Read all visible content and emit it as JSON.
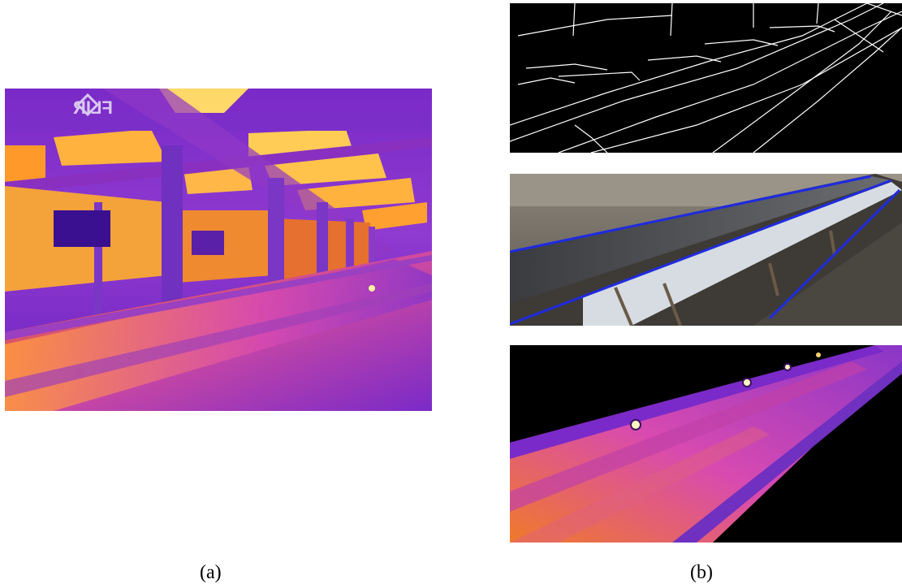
{
  "figure": {
    "panel_a": {
      "caption": "(a)",
      "watermark_text": "FLIR",
      "description_icon": "thermal-conveyor-image"
    },
    "panel_b": {
      "caption": "(b)",
      "sub_images": [
        {
          "icon": "edge-detection-image"
        },
        {
          "icon": "conveyor-photo-with-detected-lines"
        },
        {
          "icon": "thermal-belt-roi-image"
        }
      ]
    },
    "colors": {
      "thermal_hot": "#ffd24a",
      "thermal_warm": "#f07a2a",
      "thermal_mid": "#c236a6",
      "thermal_cool": "#5a1fb0",
      "detected_line": "#1f2be0",
      "background": "#ffffff"
    }
  }
}
